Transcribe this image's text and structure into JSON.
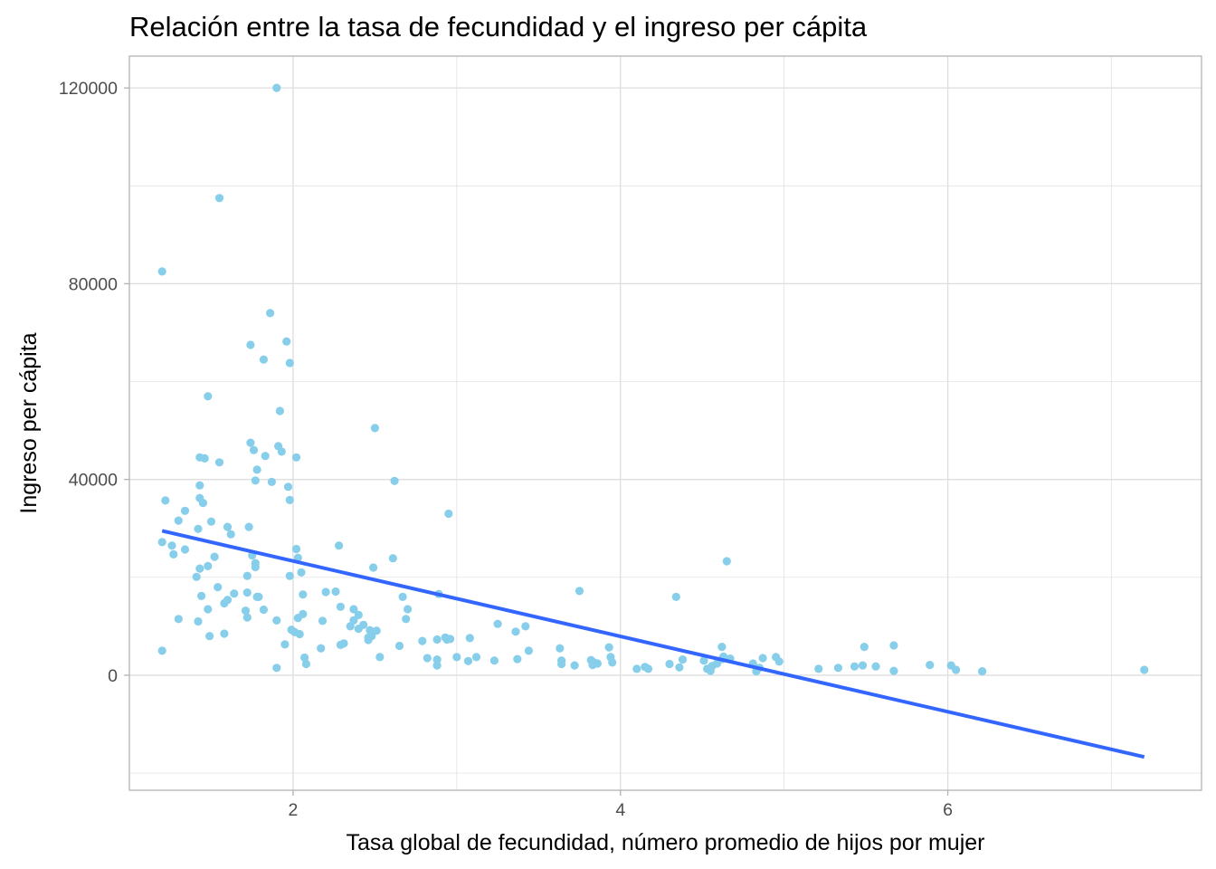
{
  "chart_data": {
    "type": "scatter",
    "title": "Relación entre la tasa de fecundidad y el ingreso per cápita",
    "xlabel": "Tasa global de fecundidad, número promedio de hijos por mujer",
    "ylabel": "Ingreso per cápita",
    "xlim": [
      1.0,
      7.55
    ],
    "ylim": [
      -23500,
      126500
    ],
    "x_ticks": [
      2,
      4,
      6
    ],
    "x_tick_labels": [
      "2",
      "4",
      "6"
    ],
    "x_minor_ticks": [
      1,
      3,
      5,
      7
    ],
    "y_ticks": [
      0,
      40000,
      80000,
      120000
    ],
    "y_tick_labels": [
      "0",
      "40000",
      "80000",
      "120000"
    ],
    "y_minor_ticks": [
      -20000,
      20000,
      60000,
      100000
    ],
    "grid": true,
    "legend": "none",
    "colors": {
      "points": "#87CEEB",
      "trend_line": "#3366FF",
      "grid": "#dedede",
      "panel_border": "#b3b3b3"
    },
    "trend_line": {
      "method": "linear",
      "x": [
        1.2,
        7.2
      ],
      "y": [
        29500,
        -16700
      ]
    },
    "points": [
      [
        1.2,
        82500
      ],
      [
        1.55,
        97500
      ],
      [
        1.9,
        120000
      ],
      [
        1.86,
        74000
      ],
      [
        1.74,
        67500
      ],
      [
        1.96,
        68200
      ],
      [
        1.82,
        64500
      ],
      [
        1.98,
        63800
      ],
      [
        1.48,
        57000
      ],
      [
        1.92,
        54000
      ],
      [
        2.5,
        50500
      ],
      [
        1.74,
        47500
      ],
      [
        1.76,
        46000
      ],
      [
        1.91,
        46800
      ],
      [
        1.93,
        45700
      ],
      [
        1.83,
        44800
      ],
      [
        2.02,
        44500
      ],
      [
        1.43,
        44500
      ],
      [
        1.46,
        44300
      ],
      [
        1.55,
        43500
      ],
      [
        1.78,
        42000
      ],
      [
        1.77,
        39800
      ],
      [
        1.87,
        39500
      ],
      [
        2.62,
        39700
      ],
      [
        1.43,
        38800
      ],
      [
        1.97,
        38500
      ],
      [
        1.98,
        35800
      ],
      [
        1.43,
        36200
      ],
      [
        1.22,
        35700
      ],
      [
        1.45,
        35200
      ],
      [
        1.34,
        33600
      ],
      [
        2.95,
        33000
      ],
      [
        1.3,
        31600
      ],
      [
        1.5,
        31400
      ],
      [
        1.6,
        30300
      ],
      [
        1.73,
        30300
      ],
      [
        1.42,
        29900
      ],
      [
        1.62,
        28800
      ],
      [
        1.2,
        27200
      ],
      [
        1.26,
        26500
      ],
      [
        1.34,
        25700
      ],
      [
        2.28,
        26500
      ],
      [
        2.02,
        25800
      ],
      [
        1.27,
        24700
      ],
      [
        1.52,
        24200
      ],
      [
        1.75,
        24500
      ],
      [
        2.03,
        24000
      ],
      [
        2.61,
        23900
      ],
      [
        4.65,
        23300
      ],
      [
        1.77,
        22900
      ],
      [
        1.77,
        22100
      ],
      [
        1.48,
        22300
      ],
      [
        1.43,
        21800
      ],
      [
        2.49,
        22000
      ],
      [
        2.05,
        21000
      ],
      [
        1.98,
        20300
      ],
      [
        1.41,
        20100
      ],
      [
        1.72,
        20300
      ],
      [
        2.2,
        17000
      ],
      [
        1.54,
        18000
      ],
      [
        1.44,
        16200
      ],
      [
        2.26,
        17100
      ],
      [
        1.64,
        16700
      ],
      [
        1.72,
        16900
      ],
      [
        1.78,
        16000
      ],
      [
        1.79,
        16000
      ],
      [
        1.6,
        15400
      ],
      [
        1.58,
        14700
      ],
      [
        2.06,
        16500
      ],
      [
        2.67,
        16000
      ],
      [
        3.75,
        17200
      ],
      [
        4.34,
        16000
      ],
      [
        2.89,
        16600
      ],
      [
        1.48,
        13500
      ],
      [
        2.29,
        14000
      ],
      [
        2.37,
        13500
      ],
      [
        1.71,
        13200
      ],
      [
        1.82,
        13400
      ],
      [
        2.7,
        13500
      ],
      [
        1.3,
        11500
      ],
      [
        1.42,
        11000
      ],
      [
        1.72,
        11800
      ],
      [
        1.9,
        11200
      ],
      [
        2.03,
        11700
      ],
      [
        2.06,
        12500
      ],
      [
        2.18,
        11100
      ],
      [
        2.4,
        12300
      ],
      [
        2.37,
        11200
      ],
      [
        2.69,
        11500
      ],
      [
        2.43,
        10300
      ],
      [
        2.35,
        10000
      ],
      [
        2.4,
        9500
      ],
      [
        2.47,
        9200
      ],
      [
        1.99,
        9300
      ],
      [
        2.01,
        8800
      ],
      [
        2.04,
        8400
      ],
      [
        2.48,
        8000
      ],
      [
        2.51,
        9100
      ],
      [
        1.49,
        8000
      ],
      [
        1.58,
        8500
      ],
      [
        2.46,
        7700
      ],
      [
        2.46,
        7200
      ],
      [
        3.25,
        10500
      ],
      [
        3.42,
        10000
      ],
      [
        3.36,
        8900
      ],
      [
        2.88,
        7300
      ],
      [
        2.94,
        7300
      ],
      [
        2.96,
        7400
      ],
      [
        3.08,
        7600
      ],
      [
        2.79,
        7000
      ],
      [
        2.93,
        7700
      ],
      [
        1.2,
        5000
      ],
      [
        1.95,
        6300
      ],
      [
        2.17,
        5500
      ],
      [
        2.29,
        6200
      ],
      [
        2.31,
        6500
      ],
      [
        2.65,
        6000
      ],
      [
        3.44,
        5000
      ],
      [
        3.63,
        5500
      ],
      [
        4.62,
        5800
      ],
      [
        5.49,
        5800
      ],
      [
        5.67,
        6100
      ],
      [
        2.07,
        3600
      ],
      [
        2.53,
        3700
      ],
      [
        2.82,
        3500
      ],
      [
        2.88,
        3200
      ],
      [
        3.0,
        3700
      ],
      [
        3.12,
        3700
      ],
      [
        3.23,
        3000
      ],
      [
        3.37,
        3300
      ],
      [
        3.07,
        2900
      ],
      [
        3.64,
        3000
      ],
      [
        3.64,
        2300
      ],
      [
        3.82,
        3100
      ],
      [
        3.84,
        2600
      ],
      [
        3.83,
        2100
      ],
      [
        3.86,
        2400
      ],
      [
        3.72,
        2000
      ],
      [
        3.93,
        5700
      ],
      [
        3.94,
        3700
      ],
      [
        3.95,
        2600
      ],
      [
        4.3,
        2300
      ],
      [
        4.38,
        3200
      ],
      [
        4.36,
        1600
      ],
      [
        4.53,
        1300
      ],
      [
        4.56,
        1900
      ],
      [
        4.59,
        2400
      ],
      [
        4.63,
        3800
      ],
      [
        4.67,
        3400
      ],
      [
        4.81,
        2400
      ],
      [
        4.85,
        1500
      ],
      [
        4.87,
        3500
      ],
      [
        4.95,
        3700
      ],
      [
        4.97,
        2800
      ],
      [
        4.51,
        3000
      ],
      [
        4.62,
        3300
      ],
      [
        2.08,
        2300
      ],
      [
        2.88,
        2000
      ],
      [
        1.9,
        1500
      ],
      [
        4.1,
        1300
      ],
      [
        4.15,
        1700
      ],
      [
        4.17,
        1300
      ],
      [
        4.55,
        900
      ],
      [
        4.83,
        800
      ],
      [
        5.21,
        1300
      ],
      [
        5.33,
        1500
      ],
      [
        5.43,
        1800
      ],
      [
        5.48,
        2000
      ],
      [
        5.56,
        1800
      ],
      [
        5.67,
        900
      ],
      [
        5.89,
        2100
      ],
      [
        6.02,
        2000
      ],
      [
        6.05,
        1100
      ],
      [
        6.21,
        800
      ],
      [
        7.2,
        1100
      ]
    ]
  }
}
